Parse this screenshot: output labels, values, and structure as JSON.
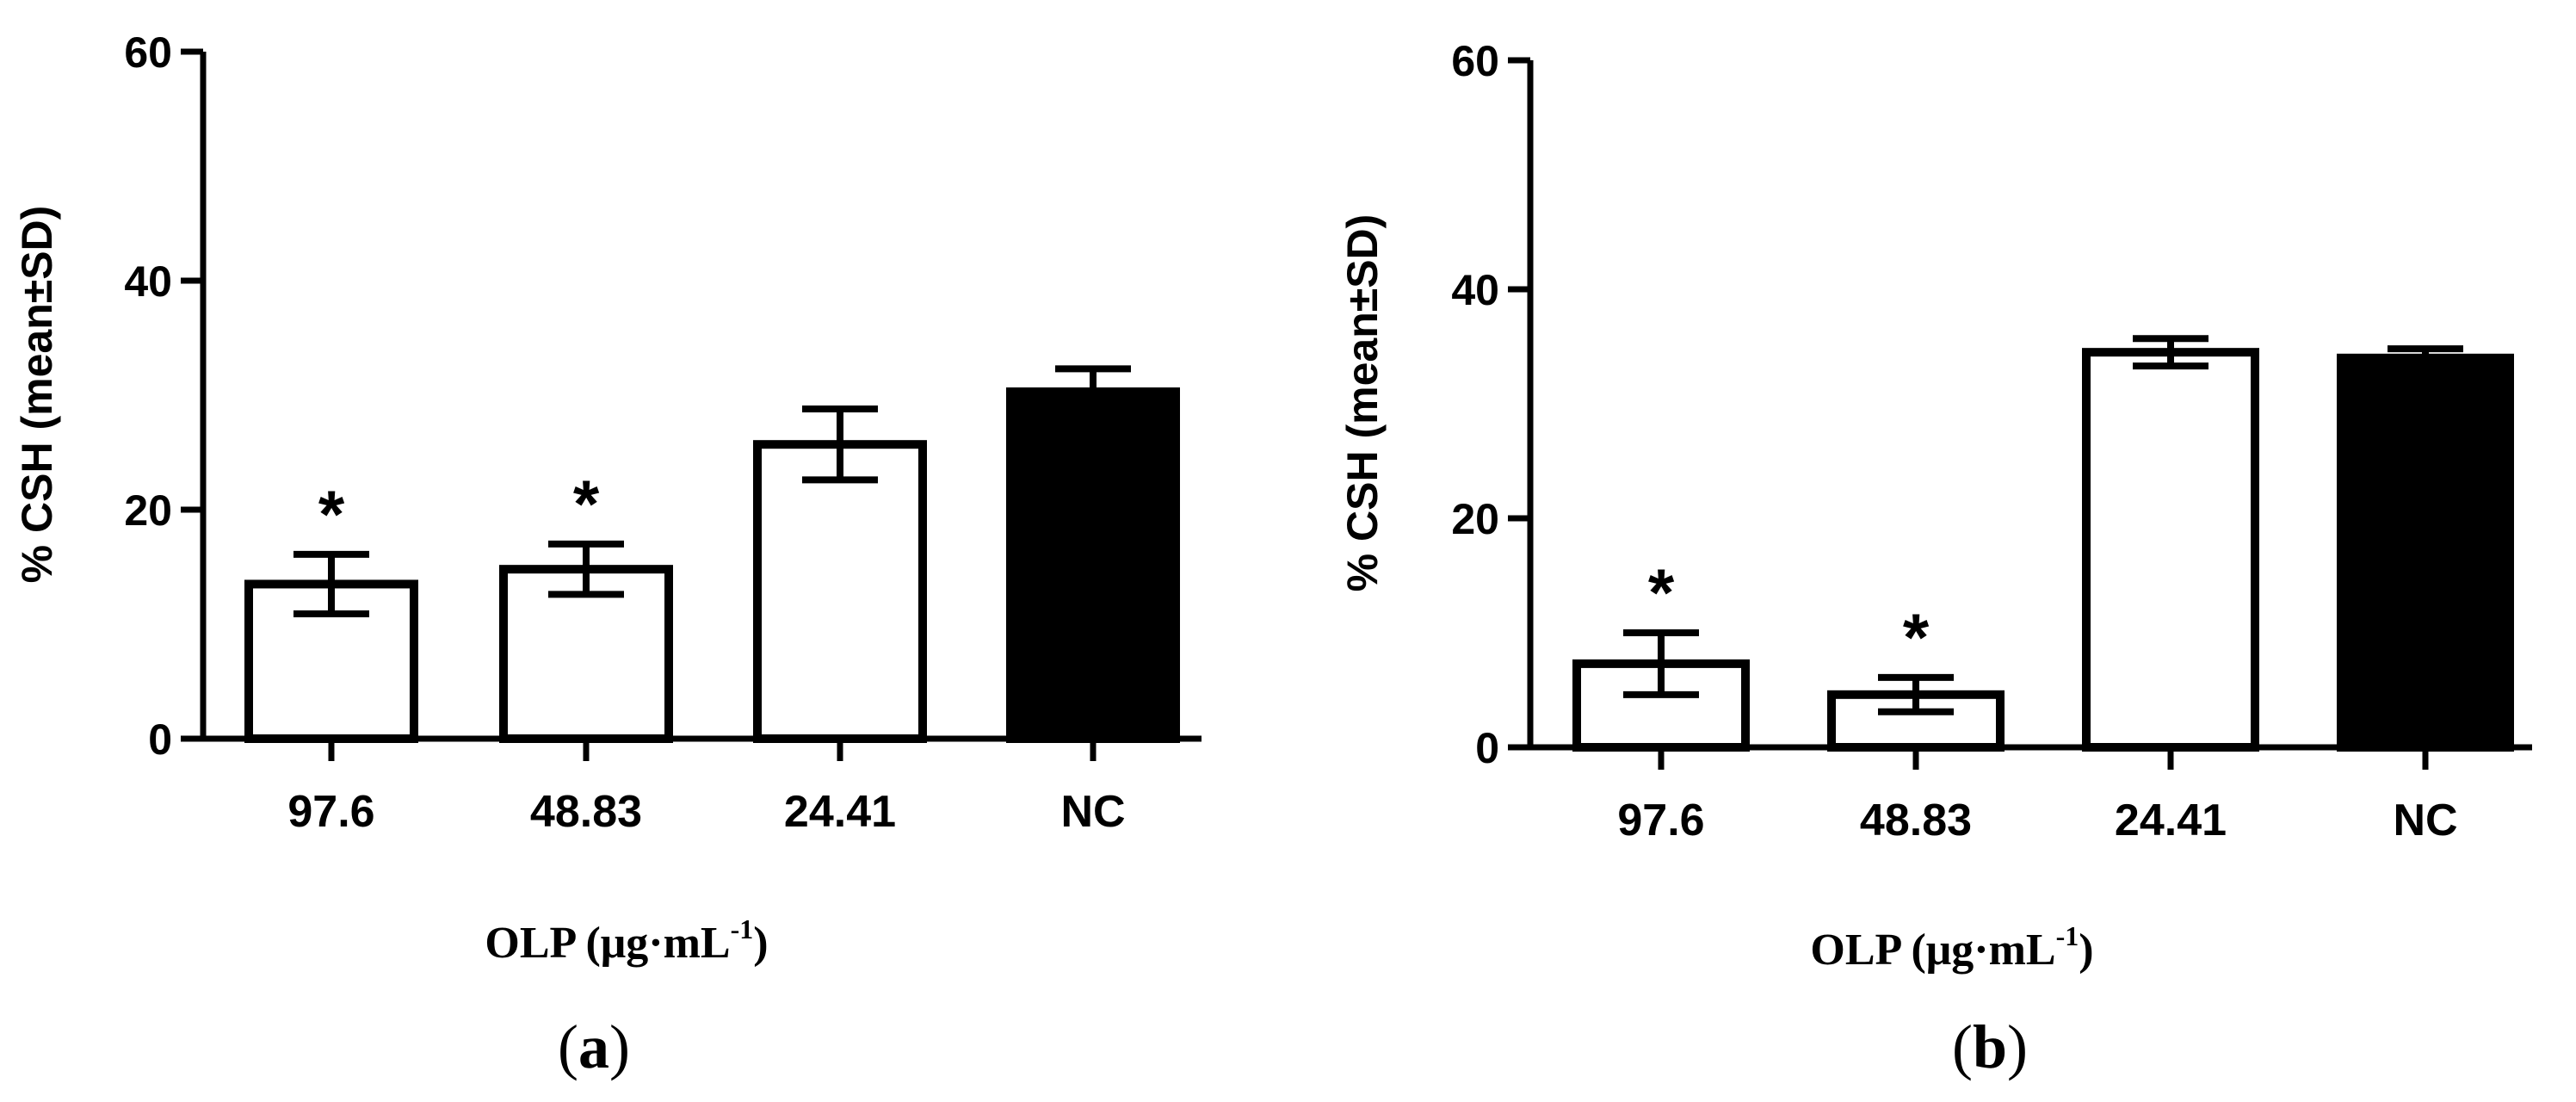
{
  "chart_data": [
    {
      "type": "bar",
      "panel": "(a)",
      "panel_letter": "a",
      "categories": [
        "97.6",
        "48.83",
        "24.41",
        "NC"
      ],
      "values": [
        13.5,
        14.8,
        25.7,
        30.3
      ],
      "errors": [
        2.6,
        2.2,
        3.1,
        2.0
      ],
      "significance": [
        "*",
        "*",
        "",
        ""
      ],
      "bar_fill": [
        "#ffffff",
        "#ffffff",
        "#ffffff",
        "#000000"
      ],
      "ylabel": "% CSH  (mean±SD)",
      "xlabel_main": "OLP (μg·mL",
      "xlabel_sup": "-1",
      "xlabel_close": ")",
      "ylim": [
        0,
        60
      ],
      "yticks": [
        "0",
        "20",
        "40",
        "60"
      ]
    },
    {
      "type": "bar",
      "panel": "(b)",
      "panel_letter": "b",
      "categories": [
        "97.6",
        "48.83",
        "24.41",
        "NC"
      ],
      "values": [
        7.3,
        4.6,
        34.5,
        34.0
      ],
      "errors": [
        2.7,
        1.5,
        1.2,
        0.8
      ],
      "significance": [
        "*",
        "*",
        "",
        ""
      ],
      "bar_fill": [
        "#ffffff",
        "#ffffff",
        "#ffffff",
        "#000000"
      ],
      "ylabel": "% CSH  (mean±SD)",
      "xlabel_main": "OLP (μg·mL",
      "xlabel_sup": "-1",
      "xlabel_close": ")",
      "ylim": [
        0,
        60
      ],
      "yticks": [
        "0",
        "20",
        "40",
        "60"
      ]
    }
  ]
}
